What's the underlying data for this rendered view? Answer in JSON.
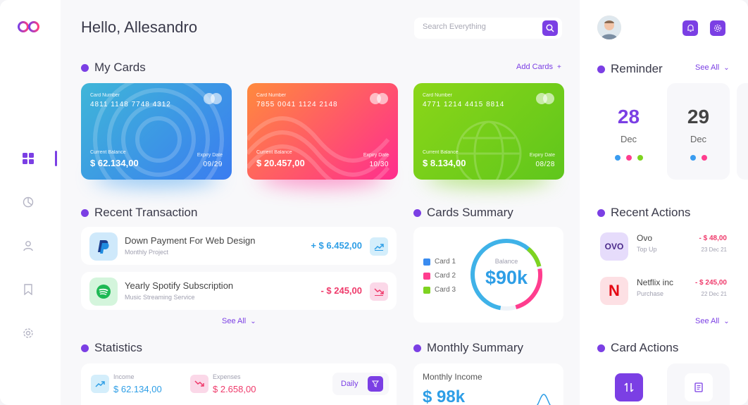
{
  "header": {
    "greeting": "Hello, Allesandro",
    "search_placeholder": "Search Everything"
  },
  "my_cards": {
    "title": "My Cards",
    "add_label": "Add Cards",
    "cards": [
      {
        "number_label": "Card Number",
        "number": "4811 1148 7748 4312",
        "balance_label": "Current Balance",
        "balance": "$ 62.134,00",
        "expiry_label": "Expiry Date",
        "expiry": "09/29",
        "color_from": "#3fb6d8",
        "color_to": "#3a7cf0"
      },
      {
        "number_label": "Card Number",
        "number": "7855 0041 1124 2148",
        "balance_label": "Current Balance",
        "balance": "$ 20.457,00",
        "expiry_label": "Expiry Date",
        "expiry": "10/30",
        "color_from": "#ff8a3d",
        "color_to": "#ff2d8e"
      },
      {
        "number_label": "Card Number",
        "number": "4771 1214 4415 8814",
        "balance_label": "Current Balance",
        "balance": "$ 8.134,00",
        "expiry_label": "Expiry Date",
        "expiry": "08/28",
        "color_from": "#8bd618",
        "color_to": "#5fc61c"
      }
    ]
  },
  "recent_transaction": {
    "title": "Recent Transaction",
    "see_all": "See All",
    "items": [
      {
        "title": "Down Payment For Web Design",
        "subtitle": "Monthly Project",
        "amount": "+ $ 6.452,00",
        "icon": "paypal-icon"
      },
      {
        "title": "Yearly Spotify Subscription",
        "subtitle": "Music Streaming Service",
        "amount": "- $ 245,00",
        "icon": "spotify-icon"
      }
    ]
  },
  "cards_summary": {
    "title": "Cards Summary",
    "legend": [
      "Card 1",
      "Card 2",
      "Card 3"
    ],
    "center_label": "Balance",
    "center_value": "$90k"
  },
  "statistics": {
    "title": "Statistics",
    "income_label": "Income",
    "income_value": "$ 62.134,00",
    "expenses_label": "Expenses",
    "expenses_value": "$ 2.658,00",
    "period": "Daily"
  },
  "monthly_summary": {
    "title": "Monthly Summary",
    "income_label": "Monthly Income",
    "income_value": "$ 98k"
  },
  "reminder": {
    "title": "Reminder",
    "see_all": "See All",
    "dates": [
      {
        "day": "28",
        "month": "Dec"
      },
      {
        "day": "29",
        "month": "Dec"
      }
    ]
  },
  "recent_actions": {
    "title": "Recent Actions",
    "see_all": "See All",
    "items": [
      {
        "logo_text": "OVO",
        "name": "Ovo",
        "type": "Top Up",
        "amount": "- $ 48,00",
        "date": "23 Dec 21"
      },
      {
        "logo_text": "N",
        "name": "Netflix inc",
        "type": "Purchase",
        "amount": "- $ 245,00",
        "date": "22 Dec 21"
      }
    ]
  },
  "card_actions": {
    "title": "Card Actions"
  },
  "colors": {
    "accent": "#7b3fe4",
    "positive": "#2e9ee6",
    "negative": "#ef3a6b"
  }
}
